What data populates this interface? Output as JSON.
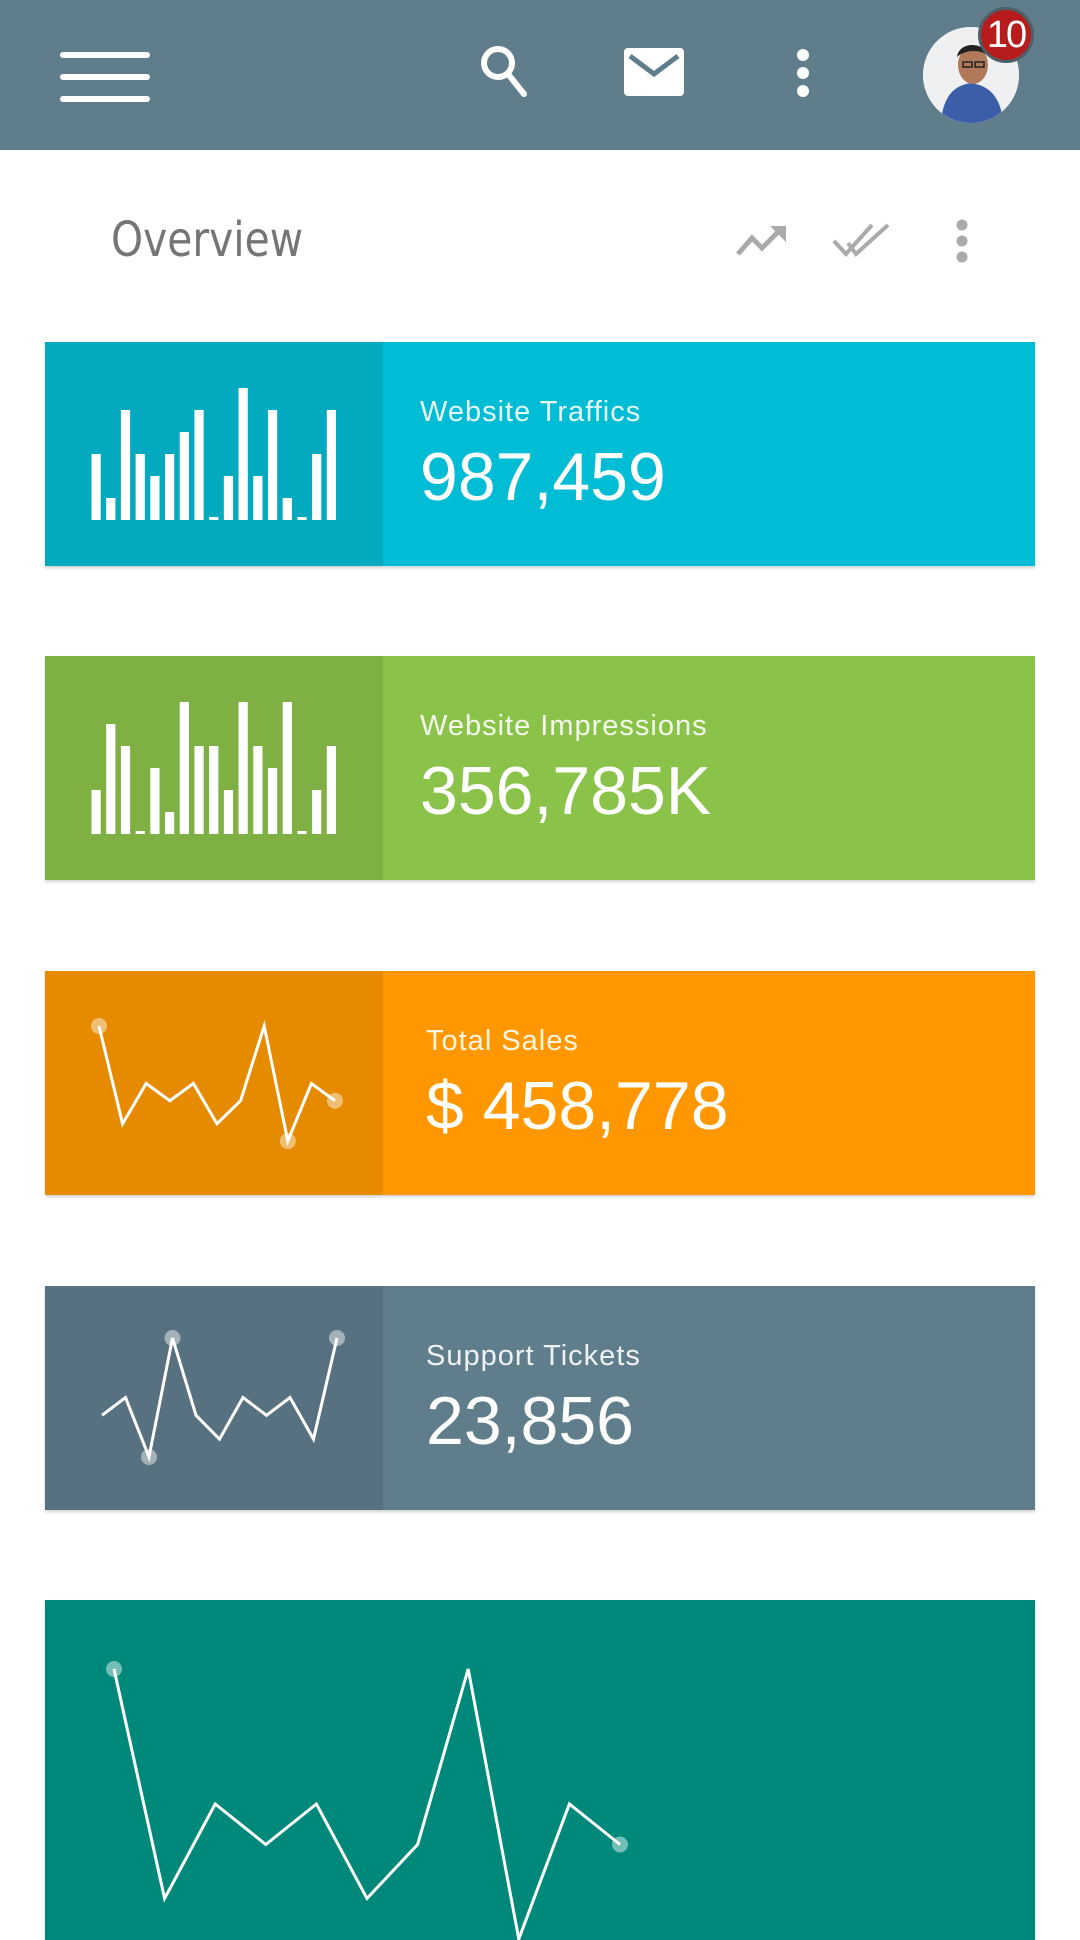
{
  "appbar": {
    "icons": [
      "menu-icon",
      "search-icon",
      "mail-icon",
      "more-vert-icon"
    ],
    "notification_count": "10",
    "color": "#607d8b"
  },
  "overview": {
    "title": "Overview",
    "icons": [
      "trending-up-icon",
      "done-all-icon",
      "more-vert-icon"
    ]
  },
  "cards": [
    {
      "label": "Website Traffics",
      "value": "987,459",
      "color": "#00bcd4",
      "panel_color": "#03a9be",
      "chart": {
        "type": "bar",
        "values": [
          3,
          1,
          5,
          3,
          2,
          3,
          4,
          5,
          0,
          2,
          6,
          2,
          5,
          1,
          0,
          3,
          5
        ]
      }
    },
    {
      "label": "Website Impressions",
      "value": "356,785K",
      "color": "#8bc34a",
      "panel_color": "#7fb044",
      "chart": {
        "type": "bar",
        "values": [
          2,
          5,
          4,
          0,
          3,
          1,
          6,
          4,
          4,
          2,
          6,
          4,
          3,
          6,
          0,
          2,
          4
        ]
      }
    },
    {
      "label": "Total Sales",
      "value": "$ 458,778",
      "color": "#ff9800",
      "panel_color": "#e68a00",
      "chart": {
        "type": "line",
        "values": [
          10,
          1.5,
          5,
          3.5,
          5,
          1.5,
          3.5,
          10,
          0,
          5,
          3.5
        ],
        "markers": [
          0,
          8,
          10
        ]
      }
    },
    {
      "label": "Support Tickets",
      "value": "23,856",
      "color": "#607d8b",
      "panel_color": "#587180",
      "chart": {
        "type": "line",
        "values": [
          3.5,
          5,
          0,
          10,
          3.5,
          1.5,
          5,
          3.5,
          5,
          1.5,
          10
        ],
        "markers": [
          2,
          3,
          10
        ]
      }
    },
    {
      "color": "#00897b",
      "panel_color": "#00857a",
      "chart": {
        "type": "line",
        "values": [
          10,
          1.5,
          5,
          3.5,
          5,
          1.5,
          3.5,
          10,
          0,
          5,
          3.5
        ],
        "markers": [
          0,
          10
        ]
      }
    }
  ]
}
